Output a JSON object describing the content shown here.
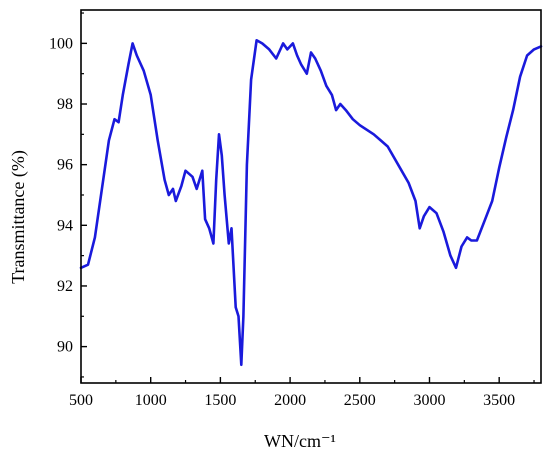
{
  "chart_data": {
    "type": "line",
    "title": "",
    "xlabel": "WN/cm⁻¹",
    "ylabel": "Transmittance  (%)",
    "xlim": [
      500,
      3800
    ],
    "ylim": [
      88.8,
      101.1
    ],
    "x_ticks": [
      500,
      1000,
      1500,
      2000,
      2500,
      3000,
      3500
    ],
    "y_ticks": [
      90,
      92,
      94,
      96,
      98,
      100
    ],
    "grid": false,
    "legend": "none",
    "series": [
      {
        "color": "#1a1adc",
        "points": [
          [
            500,
            92.6
          ],
          [
            550,
            92.7
          ],
          [
            600,
            93.6
          ],
          [
            650,
            95.2
          ],
          [
            700,
            96.8
          ],
          [
            740,
            97.5
          ],
          [
            770,
            97.4
          ],
          [
            800,
            98.3
          ],
          [
            840,
            99.3
          ],
          [
            870,
            100.0
          ],
          [
            900,
            99.6
          ],
          [
            950,
            99.1
          ],
          [
            1000,
            98.3
          ],
          [
            1050,
            96.8
          ],
          [
            1100,
            95.5
          ],
          [
            1130,
            95.0
          ],
          [
            1160,
            95.2
          ],
          [
            1180,
            94.8
          ],
          [
            1220,
            95.3
          ],
          [
            1250,
            95.8
          ],
          [
            1300,
            95.6
          ],
          [
            1330,
            95.2
          ],
          [
            1370,
            95.8
          ],
          [
            1390,
            94.2
          ],
          [
            1420,
            93.9
          ],
          [
            1450,
            93.4
          ],
          [
            1470,
            95.5
          ],
          [
            1490,
            97.0
          ],
          [
            1510,
            96.3
          ],
          [
            1530,
            95.0
          ],
          [
            1560,
            93.4
          ],
          [
            1580,
            93.9
          ],
          [
            1610,
            91.3
          ],
          [
            1630,
            91.0
          ],
          [
            1650,
            89.4
          ],
          [
            1665,
            91.0
          ],
          [
            1690,
            96.0
          ],
          [
            1720,
            98.8
          ],
          [
            1760,
            100.1
          ],
          [
            1800,
            100.0
          ],
          [
            1850,
            99.8
          ],
          [
            1900,
            99.5
          ],
          [
            1950,
            100.0
          ],
          [
            1980,
            99.8
          ],
          [
            2020,
            100.0
          ],
          [
            2050,
            99.6
          ],
          [
            2080,
            99.3
          ],
          [
            2120,
            99.0
          ],
          [
            2150,
            99.7
          ],
          [
            2180,
            99.5
          ],
          [
            2220,
            99.1
          ],
          [
            2260,
            98.6
          ],
          [
            2300,
            98.3
          ],
          [
            2330,
            97.8
          ],
          [
            2360,
            98.0
          ],
          [
            2400,
            97.8
          ],
          [
            2450,
            97.5
          ],
          [
            2500,
            97.3
          ],
          [
            2600,
            97.0
          ],
          [
            2700,
            96.6
          ],
          [
            2800,
            95.8
          ],
          [
            2850,
            95.4
          ],
          [
            2900,
            94.8
          ],
          [
            2930,
            93.9
          ],
          [
            2960,
            94.3
          ],
          [
            3000,
            94.6
          ],
          [
            3050,
            94.4
          ],
          [
            3100,
            93.8
          ],
          [
            3150,
            93.0
          ],
          [
            3190,
            92.6
          ],
          [
            3230,
            93.3
          ],
          [
            3270,
            93.6
          ],
          [
            3300,
            93.5
          ],
          [
            3340,
            93.5
          ],
          [
            3400,
            94.2
          ],
          [
            3450,
            94.8
          ],
          [
            3500,
            95.9
          ],
          [
            3550,
            96.9
          ],
          [
            3600,
            97.8
          ],
          [
            3650,
            98.9
          ],
          [
            3700,
            99.6
          ],
          [
            3750,
            99.8
          ],
          [
            3800,
            99.9
          ]
        ]
      }
    ]
  }
}
